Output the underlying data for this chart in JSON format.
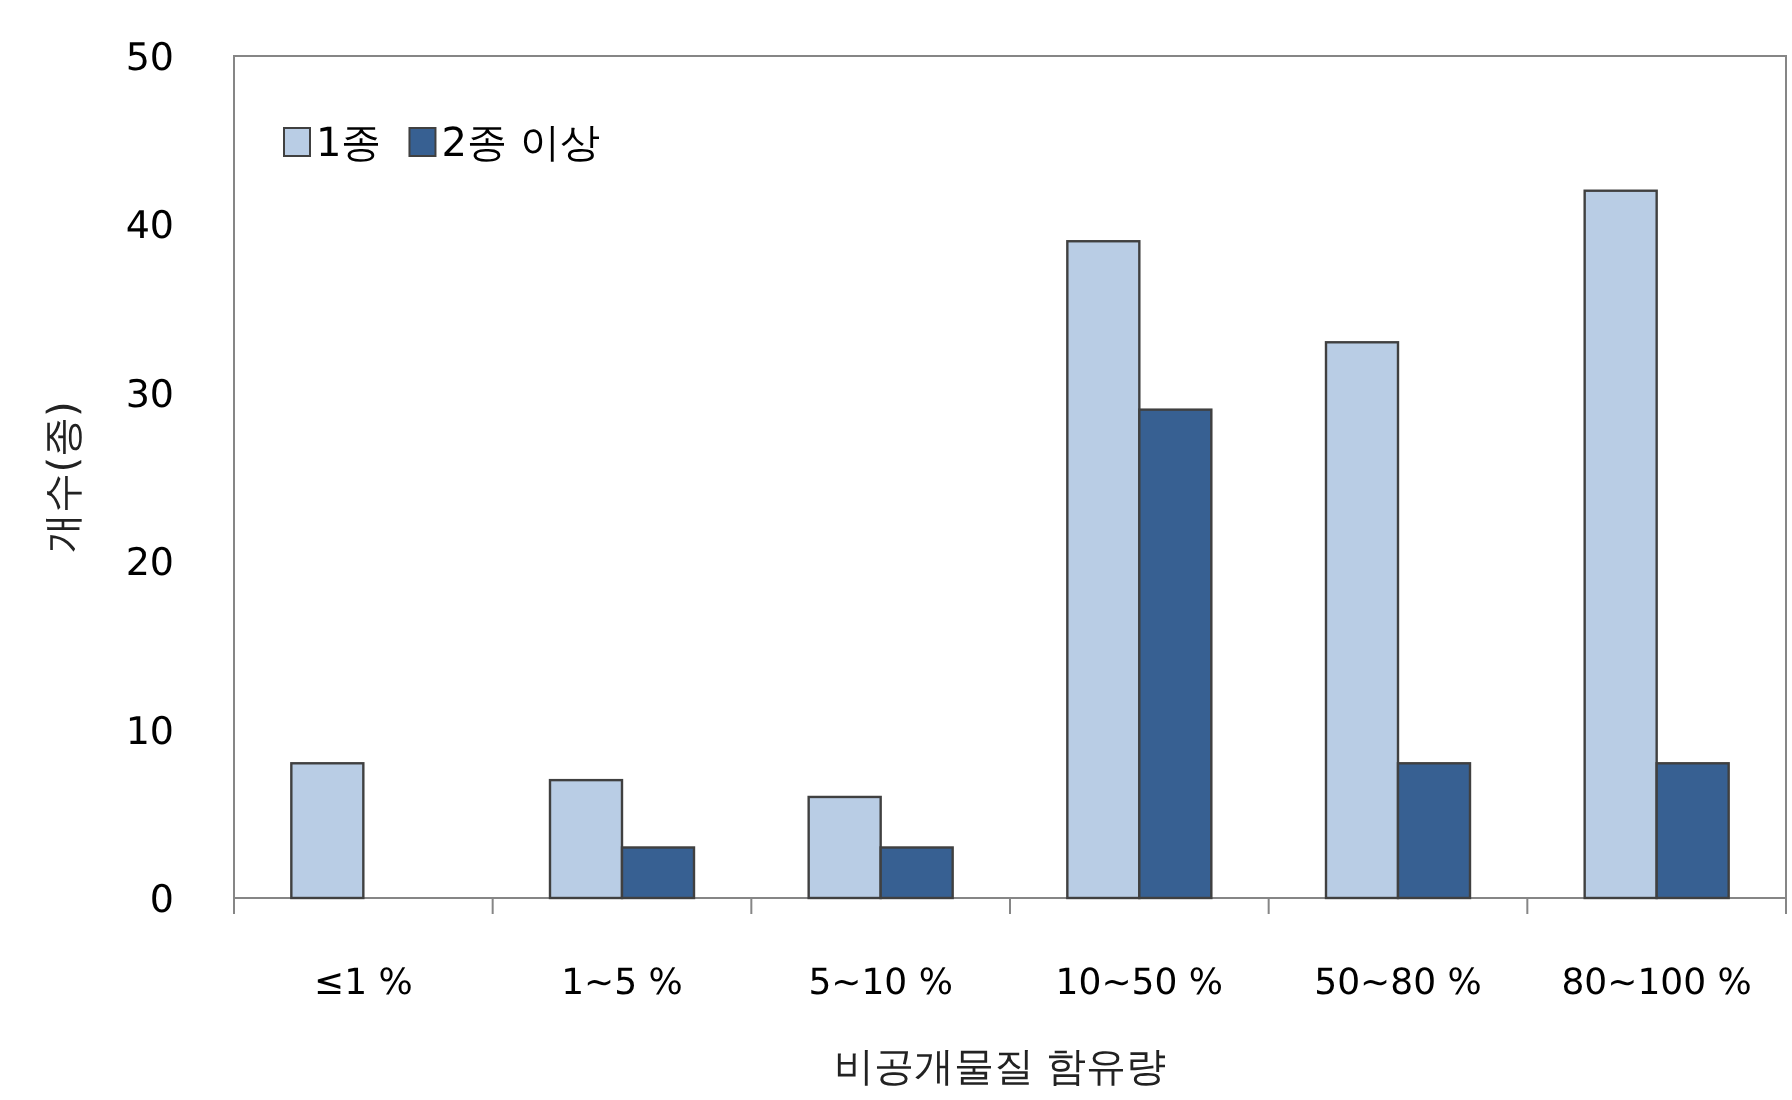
{
  "chart_data": {
    "type": "bar",
    "xlabel": "비공개물질 함유량",
    "ylabel": "개수(종)",
    "categories": [
      "≤1 %",
      "1~5 %",
      "5~10 %",
      "10~50 %",
      "50~80 %",
      "80~100 %"
    ],
    "series": [
      {
        "name": "1종",
        "color": "#b9cde5",
        "values": [
          8,
          7,
          6,
          39,
          33,
          42
        ]
      },
      {
        "name": "2종 이상",
        "color": "#376092",
        "values": [
          0,
          3,
          3,
          29,
          8,
          8
        ]
      }
    ],
    "ylim": [
      0,
      50
    ],
    "yticks": [
      0,
      10,
      20,
      30,
      40,
      50
    ],
    "legend": "top left",
    "grid": false
  }
}
